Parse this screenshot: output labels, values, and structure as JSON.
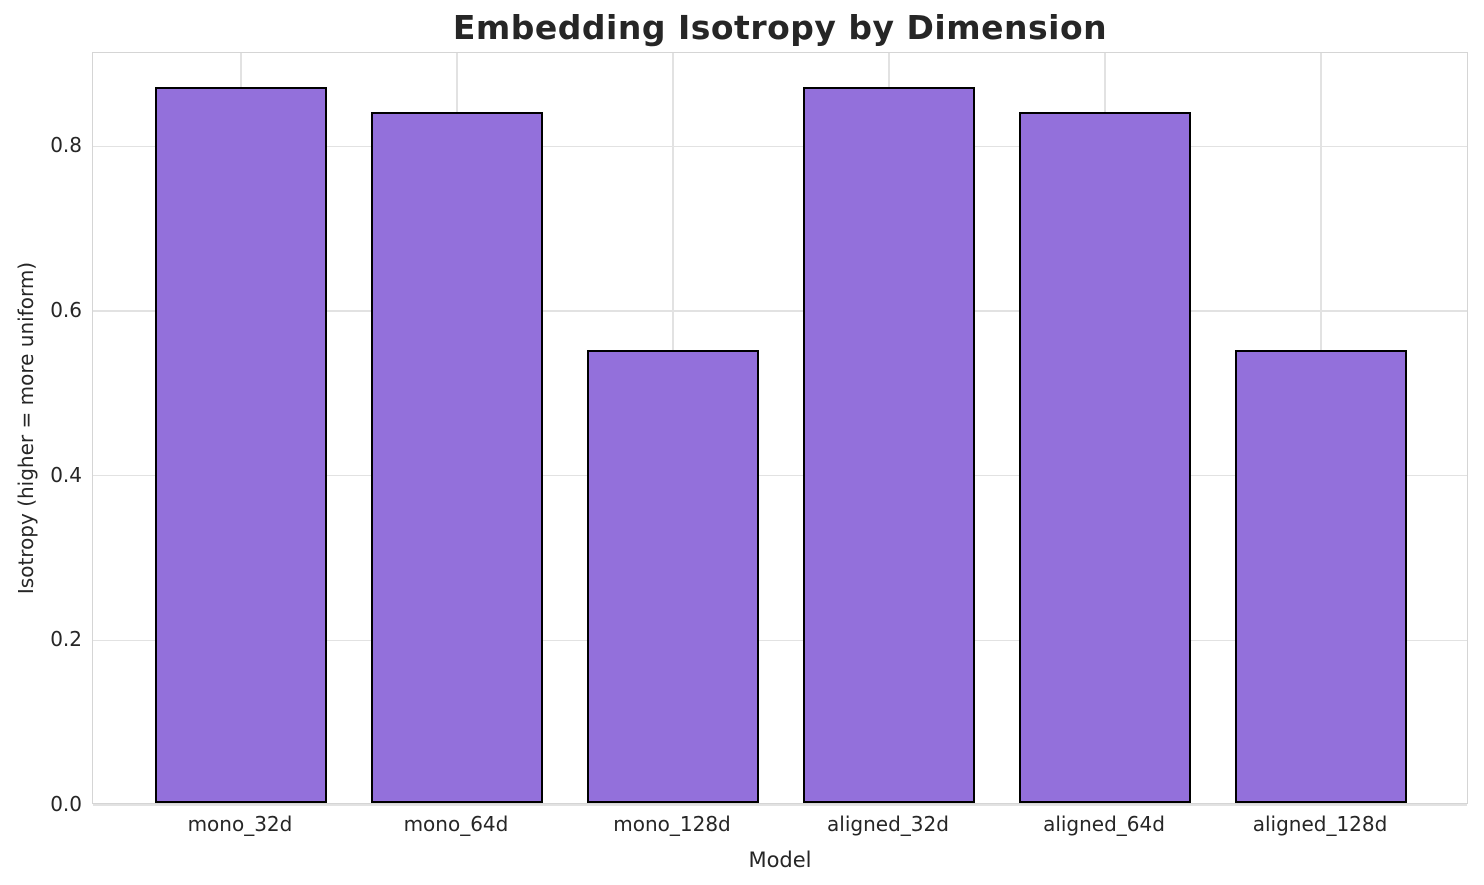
{
  "chart_data": {
    "type": "bar",
    "title": "Embedding Isotropy by Dimension",
    "xlabel": "Model",
    "ylabel": "Isotropy (higher = more uniform)",
    "categories": [
      "mono_32d",
      "mono_64d",
      "mono_128d",
      "aligned_32d",
      "aligned_64d",
      "aligned_128d"
    ],
    "values": [
      0.87,
      0.84,
      0.55,
      0.87,
      0.84,
      0.55
    ],
    "yticks": [
      0.0,
      0.2,
      0.4,
      0.6,
      0.8
    ],
    "ytick_labels": [
      "0.0",
      "0.2",
      "0.4",
      "0.6",
      "0.8"
    ],
    "ylim": [
      0,
      0.9135
    ],
    "xlim": [
      -0.685,
      5.685
    ],
    "bar_width": 0.8,
    "grid": true,
    "legend_position": "none",
    "colors": {
      "bar_fill": "#9370DB",
      "bar_edge": "#000000",
      "grid": "#e2e2e2",
      "spine": "#d5d5d5",
      "text": "#262626",
      "background": "#ffffff"
    }
  }
}
